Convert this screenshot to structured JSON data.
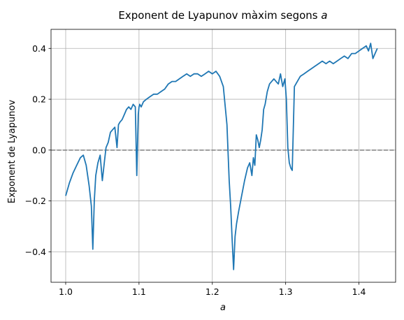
{
  "chart_data": {
    "type": "line",
    "title": "Exponent de Lyapunov màxim segons",
    "title_var": "a",
    "xlabel": "a",
    "ylabel": "Exponent de Lyapunov",
    "xlim": [
      0.98,
      1.45
    ],
    "ylim": [
      -0.52,
      0.475
    ],
    "grid": true,
    "x_ticks": [
      1.0,
      1.1,
      1.2,
      1.3,
      1.4
    ],
    "x_tick_labels": [
      "1.0",
      "1.1",
      "1.2",
      "1.3",
      "1.4"
    ],
    "y_ticks": [
      -0.4,
      -0.2,
      0.0,
      0.2,
      0.4
    ],
    "y_tick_labels": [
      "−0.4",
      "−0.2",
      "0.0",
      "0.2",
      "0.4"
    ],
    "reference_line": {
      "y": 0.0,
      "style": "dashed",
      "color": "#808080"
    },
    "series": [
      {
        "color": "#1f77b4",
        "x": [
          1.0,
          1.005,
          1.01,
          1.015,
          1.02,
          1.024,
          1.028,
          1.032,
          1.035,
          1.037,
          1.039,
          1.041,
          1.044,
          1.047,
          1.05,
          1.053,
          1.055,
          1.058,
          1.061,
          1.064,
          1.067,
          1.07,
          1.072,
          1.074,
          1.077,
          1.08,
          1.083,
          1.086,
          1.089,
          1.092,
          1.095,
          1.097,
          1.099,
          1.1,
          1.101,
          1.103,
          1.106,
          1.11,
          1.115,
          1.12,
          1.125,
          1.13,
          1.135,
          1.14,
          1.145,
          1.15,
          1.155,
          1.16,
          1.165,
          1.17,
          1.175,
          1.18,
          1.185,
          1.19,
          1.195,
          1.2,
          1.205,
          1.21,
          1.215,
          1.22,
          1.223,
          1.225,
          1.227,
          1.229,
          1.231,
          1.233,
          1.236,
          1.24,
          1.244,
          1.248,
          1.251,
          1.254,
          1.256,
          1.258,
          1.26,
          1.262,
          1.264,
          1.266,
          1.268,
          1.27,
          1.272,
          1.275,
          1.278,
          1.281,
          1.284,
          1.287,
          1.29,
          1.293,
          1.296,
          1.299,
          1.301,
          1.303,
          1.305,
          1.307,
          1.309,
          1.312,
          1.316,
          1.32,
          1.325,
          1.33,
          1.335,
          1.34,
          1.345,
          1.35,
          1.355,
          1.36,
          1.365,
          1.37,
          1.375,
          1.38,
          1.385,
          1.39,
          1.395,
          1.4,
          1.405,
          1.41,
          1.413,
          1.416,
          1.419,
          1.422,
          1.425
        ],
        "y": [
          -0.18,
          -0.13,
          -0.09,
          -0.06,
          -0.03,
          -0.02,
          -0.06,
          -0.14,
          -0.22,
          -0.39,
          -0.2,
          -0.1,
          -0.05,
          -0.02,
          -0.12,
          -0.04,
          0.01,
          0.03,
          0.07,
          0.08,
          0.09,
          0.01,
          0.1,
          0.11,
          0.12,
          0.14,
          0.16,
          0.17,
          0.16,
          0.18,
          0.17,
          -0.1,
          0.14,
          0.17,
          0.18,
          0.17,
          0.19,
          0.2,
          0.21,
          0.22,
          0.22,
          0.23,
          0.24,
          0.26,
          0.27,
          0.27,
          0.28,
          0.29,
          0.3,
          0.29,
          0.3,
          0.3,
          0.29,
          0.3,
          0.31,
          0.3,
          0.31,
          0.29,
          0.25,
          0.1,
          -0.12,
          -0.22,
          -0.35,
          -0.47,
          -0.34,
          -0.29,
          -0.24,
          -0.18,
          -0.12,
          -0.07,
          -0.05,
          -0.1,
          -0.03,
          -0.06,
          0.06,
          0.04,
          0.01,
          0.04,
          0.08,
          0.16,
          0.18,
          0.23,
          0.26,
          0.27,
          0.28,
          0.27,
          0.26,
          0.3,
          0.25,
          0.28,
          0.2,
          0.01,
          -0.05,
          -0.07,
          -0.08,
          0.25,
          0.27,
          0.29,
          0.3,
          0.31,
          0.32,
          0.33,
          0.34,
          0.35,
          0.34,
          0.35,
          0.34,
          0.35,
          0.36,
          0.37,
          0.36,
          0.38,
          0.38,
          0.39,
          0.4,
          0.41,
          0.39,
          0.42,
          0.36,
          0.38,
          0.4
        ]
      }
    ]
  }
}
